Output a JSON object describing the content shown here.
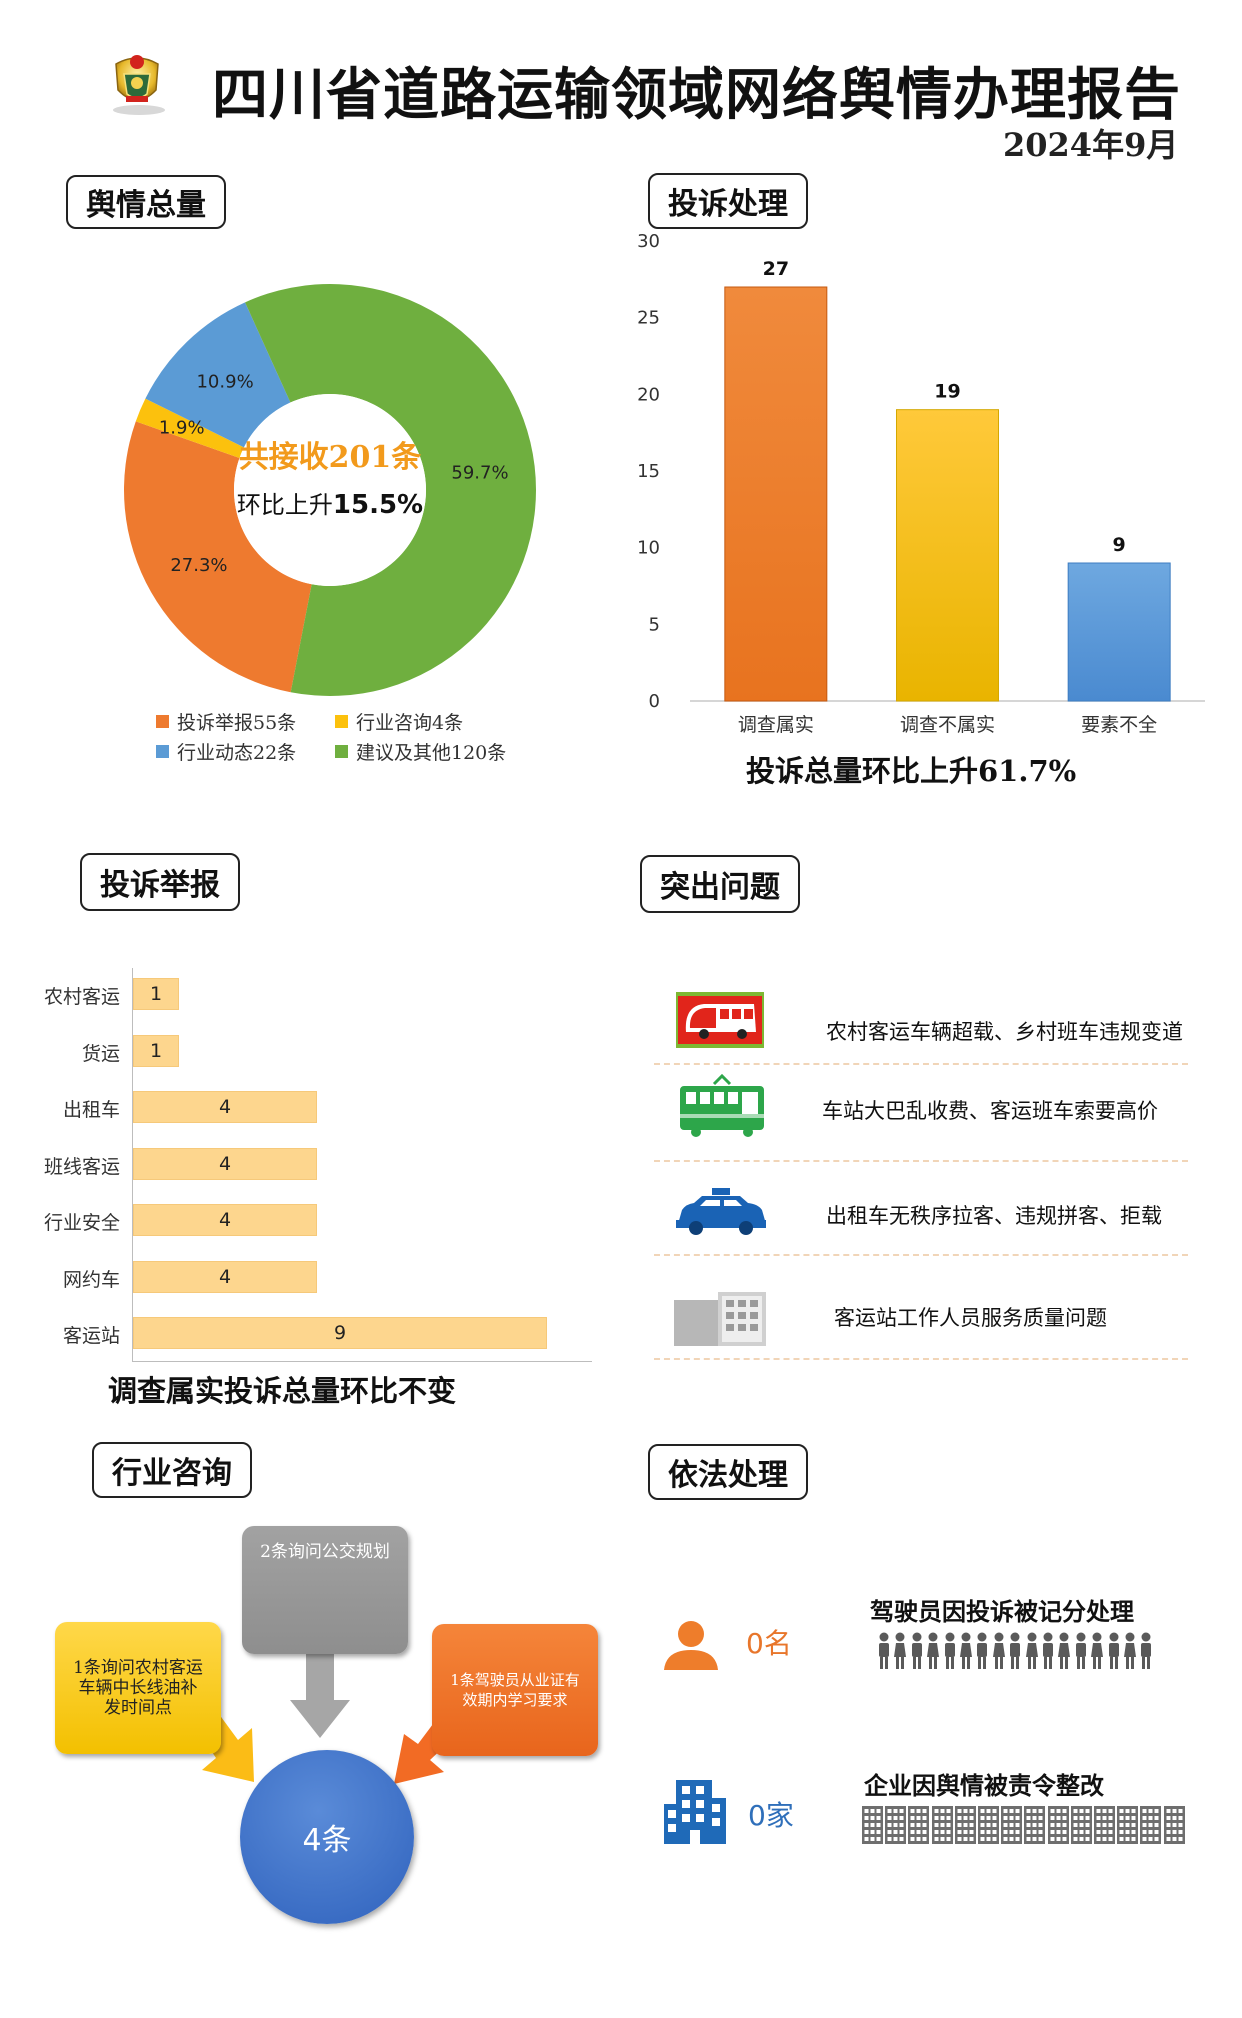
{
  "header": {
    "title": "四川省道路运输领域网络舆情办理报告",
    "date": "2024年9月"
  },
  "sections": {
    "total": "舆情总量",
    "complaints": "投诉处理",
    "reports": "投诉举报",
    "issues": "突出问题",
    "consult": "行业咨询",
    "legal": "依法处理"
  },
  "donut": {
    "center_line1": "共接收201条",
    "center_line2_prefix": "环比上升",
    "center_line2_value": "15.5%",
    "colors": {
      "orange": "#ee7a2f",
      "yellow": "#fcc10d",
      "blue": "#5b9bd5",
      "green": "#6faf3f"
    }
  },
  "complaint_caption": "投诉总量环比上升61.7%",
  "report_caption": "调查属实投诉总量环比不变",
  "chart_data": [
    {
      "type": "pie",
      "categories": [
        "投诉举报55条",
        "行业咨询4条",
        "行业动态22条",
        "建议及其他120条"
      ],
      "values": [
        27.3,
        1.9,
        10.9,
        59.7
      ],
      "labels": [
        "27.3%",
        "1.9%",
        "10.9%",
        "59.7%"
      ],
      "legend": "bottom"
    },
    {
      "type": "bar",
      "categories": [
        "调查属实",
        "调查不属实",
        "要素不全"
      ],
      "values": [
        27,
        19,
        9
      ],
      "ylim": [
        0,
        30
      ],
      "yticks": [
        "0",
        "5",
        "10",
        "15",
        "20",
        "25",
        "30"
      ]
    },
    {
      "type": "bar",
      "orientation": "horizontal",
      "categories": [
        "农村客运",
        "货运",
        "出租车",
        "班线客运",
        "行业安全",
        "网约车",
        "客运站"
      ],
      "values": [
        1,
        1,
        4,
        4,
        4,
        4,
        9
      ]
    }
  ],
  "issues": [
    {
      "icon": "bus-icon",
      "text": "农村客运车辆超载、乡村班车违规变道"
    },
    {
      "icon": "tram-icon",
      "text": "车站大巴乱收费、客运班车索要高价"
    },
    {
      "icon": "taxi-icon",
      "text": "出租车无秩序拉客、违规拼客、拒载"
    },
    {
      "icon": "building-icon",
      "text": "客运站工作人员服务质量问题"
    }
  ],
  "consult": {
    "center": "4条",
    "top": "2条询问公交规划",
    "left": "1条询问农村客运车辆中长线油补发时间点",
    "right": "1条驾驶员从业证有效期内学习要求"
  },
  "legal": {
    "driver_count": "0名",
    "driver_heading": "驾驶员因投诉被记分处理",
    "company_count": "0家",
    "company_heading": "企业因舆情被责令整改"
  }
}
